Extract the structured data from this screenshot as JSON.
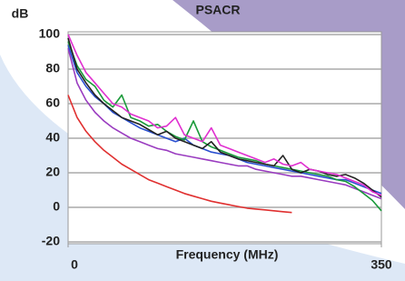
{
  "chart_data": {
    "type": "line",
    "title": "PSACR",
    "y_label": "dB",
    "x_label": "Frequency (MHz)",
    "x": [
      0,
      10,
      20,
      30,
      40,
      50,
      60,
      70,
      80,
      90,
      100,
      110,
      120,
      130,
      140,
      150,
      160,
      170,
      180,
      190,
      200,
      210,
      220,
      230,
      240,
      250,
      260,
      270,
      280,
      290,
      300,
      310,
      320,
      330,
      340,
      350
    ],
    "xlim": [
      0,
      350
    ],
    "xticks": [
      0,
      350
    ],
    "ylim": [
      -20,
      100
    ],
    "yticks": [
      -20,
      0,
      20,
      40,
      60,
      80,
      100
    ],
    "grid": true,
    "series": [
      {
        "color": "#e03030",
        "values": [
          65,
          52,
          44,
          38,
          33,
          29,
          25,
          22,
          19,
          16,
          14,
          12,
          10,
          8,
          6.5,
          5,
          3.5,
          2.5,
          1.5,
          0.5,
          -0.5,
          -1,
          -1.5,
          -2,
          -2.5,
          -3,
          null,
          null,
          null,
          null,
          null,
          null,
          null,
          null,
          null,
          null
        ]
      },
      {
        "color": "#9a3cc0",
        "values": [
          92,
          72,
          62,
          55,
          50,
          46,
          43,
          40,
          38,
          36,
          34,
          33,
          31,
          30,
          29,
          28,
          27,
          26,
          25,
          24,
          24,
          22,
          21,
          20,
          19,
          18,
          18,
          17,
          16,
          15,
          14,
          13,
          11,
          9,
          7,
          5
        ]
      },
      {
        "color": "#2a4fd0",
        "values": [
          94,
          78,
          70,
          64,
          60,
          55,
          52,
          49,
          46,
          44,
          42,
          40,
          38,
          40,
          36,
          34,
          32,
          31,
          30,
          28,
          26,
          25,
          24,
          23,
          22,
          21,
          20,
          19,
          18,
          17,
          16,
          16,
          14,
          12,
          10,
          8
        ]
      },
      {
        "color": "#1a9a3a",
        "values": [
          96,
          82,
          74,
          70,
          62,
          58,
          65,
          52,
          50,
          47,
          48,
          44,
          41,
          39,
          50,
          38,
          35,
          33,
          31,
          29,
          28,
          27,
          25,
          24,
          23,
          22,
          21,
          20,
          19,
          18,
          16,
          15,
          12,
          8,
          4,
          -2
        ]
      },
      {
        "color": "#222222",
        "values": [
          98,
          80,
          72,
          65,
          60,
          56,
          52,
          50,
          48,
          45,
          42,
          44,
          40,
          38,
          36,
          34,
          38,
          32,
          30,
          28,
          27,
          26,
          25,
          24,
          30,
          22,
          20,
          22,
          21,
          19,
          18,
          19,
          17,
          14,
          10,
          6
        ]
      },
      {
        "color": "#e030d0",
        "values": [
          100,
          88,
          78,
          72,
          66,
          60,
          58,
          54,
          52,
          50,
          46,
          47,
          52,
          42,
          40,
          38,
          46,
          36,
          34,
          32,
          30,
          28,
          26,
          28,
          25,
          24,
          26,
          22,
          21,
          20,
          19,
          17,
          15,
          13,
          9,
          7
        ]
      }
    ]
  }
}
